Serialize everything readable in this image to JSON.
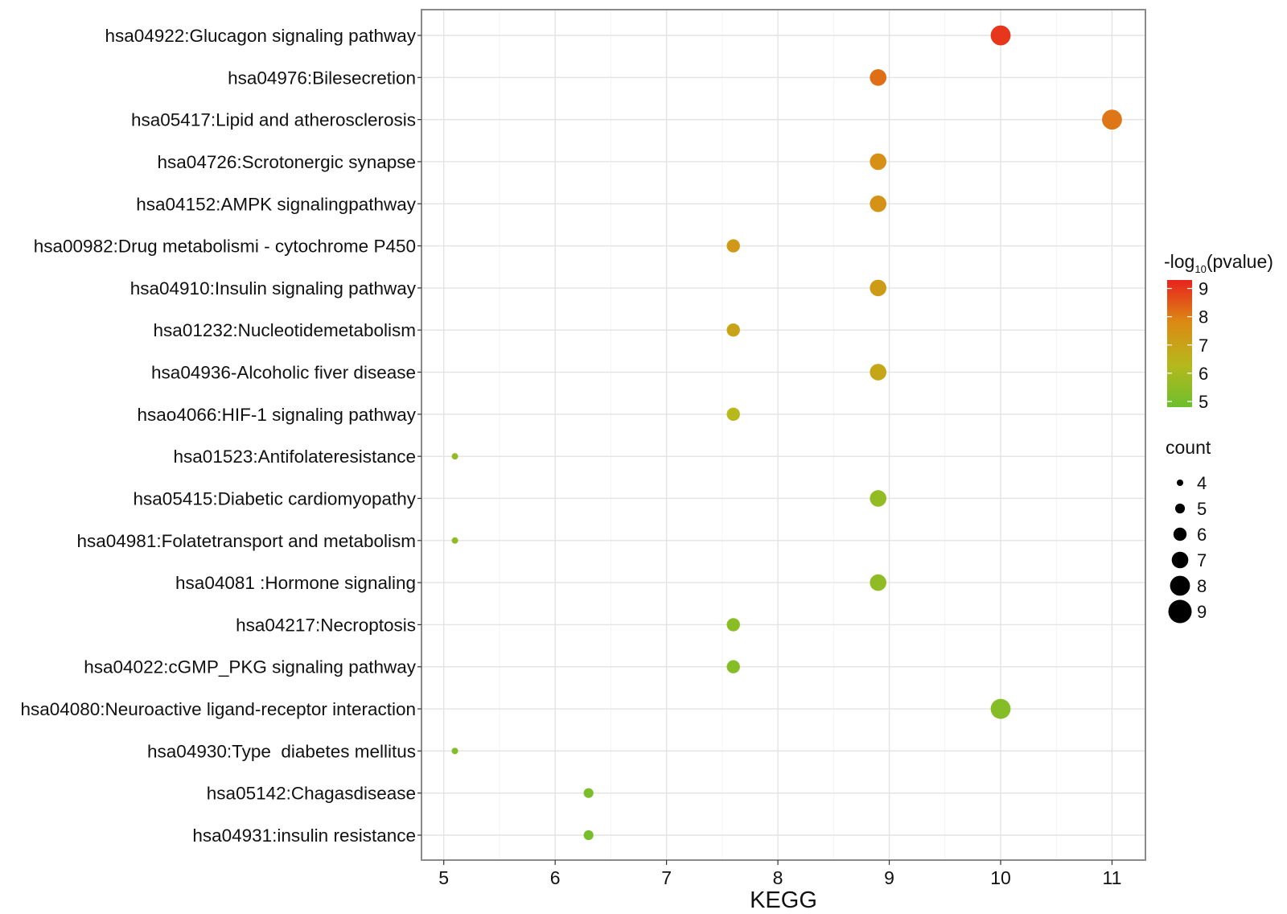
{
  "chart_data": {
    "type": "scatter",
    "title": "",
    "xlabel": "KEGG",
    "ylabel": "",
    "xlim": [
      4.8,
      11.3
    ],
    "x_ticks": [
      5,
      6,
      7,
      8,
      9,
      10,
      11
    ],
    "grid": true,
    "points": [
      {
        "term": "hsa04922:Glucagon signaling pathway",
        "x": 10.0,
        "pvalue": 9.0,
        "count": 8
      },
      {
        "term": "hsa04976:Bilesecretion",
        "x": 8.9,
        "pvalue": 8.2,
        "count": 7
      },
      {
        "term": "hsa05417:Lipid and atherosclerosis",
        "x": 11.0,
        "pvalue": 8.1,
        "count": 8
      },
      {
        "term": "hsa04726:Scrotonergic synapse",
        "x": 8.9,
        "pvalue": 7.6,
        "count": 7
      },
      {
        "term": "hsa04152:AMPK signalingpathway",
        "x": 8.9,
        "pvalue": 7.5,
        "count": 7
      },
      {
        "term": "hsa00982:Drug metabolismi - cytochrome P450",
        "x": 7.6,
        "pvalue": 7.3,
        "count": 6
      },
      {
        "term": "hsa04910:Insulin signaling pathway",
        "x": 8.9,
        "pvalue": 7.2,
        "count": 7
      },
      {
        "term": "hsa01232:Nucleotidemetabolism",
        "x": 7.6,
        "pvalue": 7.0,
        "count": 6
      },
      {
        "term": "hsa04936-Alcoholic fiver disease",
        "x": 8.9,
        "pvalue": 6.9,
        "count": 7
      },
      {
        "term": "hsao4066:HIF-1 signaling pathway",
        "x": 7.6,
        "pvalue": 6.3,
        "count": 6
      },
      {
        "term": "hsa01523:Antifolateresistance",
        "x": 5.1,
        "pvalue": 5.6,
        "count": 4
      },
      {
        "term": "hsa05415:Diabetic cardiomyopathy",
        "x": 8.9,
        "pvalue": 5.6,
        "count": 7
      },
      {
        "term": "hsa04981:Folatetransport and metabolism",
        "x": 5.1,
        "pvalue": 5.5,
        "count": 4
      },
      {
        "term": "hsa04081 :Hormone signaling",
        "x": 8.9,
        "pvalue": 5.5,
        "count": 7
      },
      {
        "term": "hsa04217:Necroptosis",
        "x": 7.6,
        "pvalue": 5.4,
        "count": 6
      },
      {
        "term": "hsa04022:cGMP_PKG signaling pathway",
        "x": 7.6,
        "pvalue": 5.3,
        "count": 6
      },
      {
        "term": "hsa04080:Neuroactive ligand-receptor interaction",
        "x": 10.0,
        "pvalue": 5.3,
        "count": 8
      },
      {
        "term": "hsa04930:Type  diabetes mellitus",
        "x": 5.1,
        "pvalue": 5.2,
        "count": 4
      },
      {
        "term": "hsa05142:Chagasdisease",
        "x": 6.3,
        "pvalue": 5.1,
        "count": 5
      },
      {
        "term": "hsa04931:insulin resistance",
        "x": 6.3,
        "pvalue": 5.0,
        "count": 5
      }
    ],
    "legend_color": {
      "title_prefix": "-log",
      "title_sub": "10",
      "title_suffix": "(pvalue)",
      "ticks": [
        9,
        8,
        7,
        6,
        5
      ],
      "range": [
        4.8,
        9.3
      ],
      "colors": [
        "#6cbf2d",
        "#b6b81c",
        "#dc8a14",
        "#e8221e"
      ]
    },
    "legend_size": {
      "title": "count",
      "values": [
        4,
        5,
        6,
        7,
        8,
        9
      ]
    },
    "legend_position": "right"
  }
}
